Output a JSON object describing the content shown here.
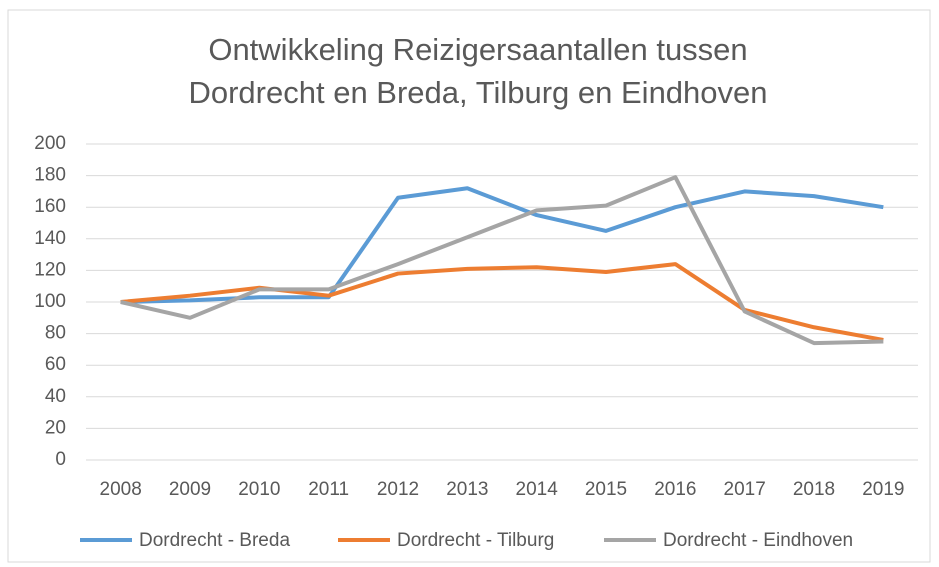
{
  "chart_data": {
    "type": "line",
    "title": [
      "Ontwikkeling Reizigersaantallen tussen",
      "Dordrecht en Breda, Tilburg en Eindhoven"
    ],
    "categories": [
      "2008",
      "2009",
      "2010",
      "2011",
      "2012",
      "2013",
      "2014",
      "2015",
      "2016",
      "2017",
      "2018",
      "2019"
    ],
    "series": [
      {
        "name": "Dordrecht - Breda",
        "color": "#5b9bd5",
        "values": [
          100,
          101,
          103,
          103,
          166,
          172,
          155,
          145,
          160,
          170,
          167,
          160
        ]
      },
      {
        "name": "Dordrecht - Tilburg",
        "color": "#ed7d31",
        "values": [
          100,
          104,
          109,
          104,
          118,
          121,
          122,
          119,
          124,
          95,
          84,
          76
        ]
      },
      {
        "name": "Dordrecht - Eindhoven",
        "color": "#a5a5a5",
        "values": [
          100,
          90,
          108,
          108,
          124,
          141,
          158,
          161,
          179,
          94,
          74,
          75
        ]
      }
    ],
    "ylim": [
      0,
      200
    ],
    "yticks": [
      0,
      20,
      40,
      60,
      80,
      100,
      120,
      140,
      160,
      180,
      200
    ],
    "grid": true,
    "legend": "bottom"
  }
}
